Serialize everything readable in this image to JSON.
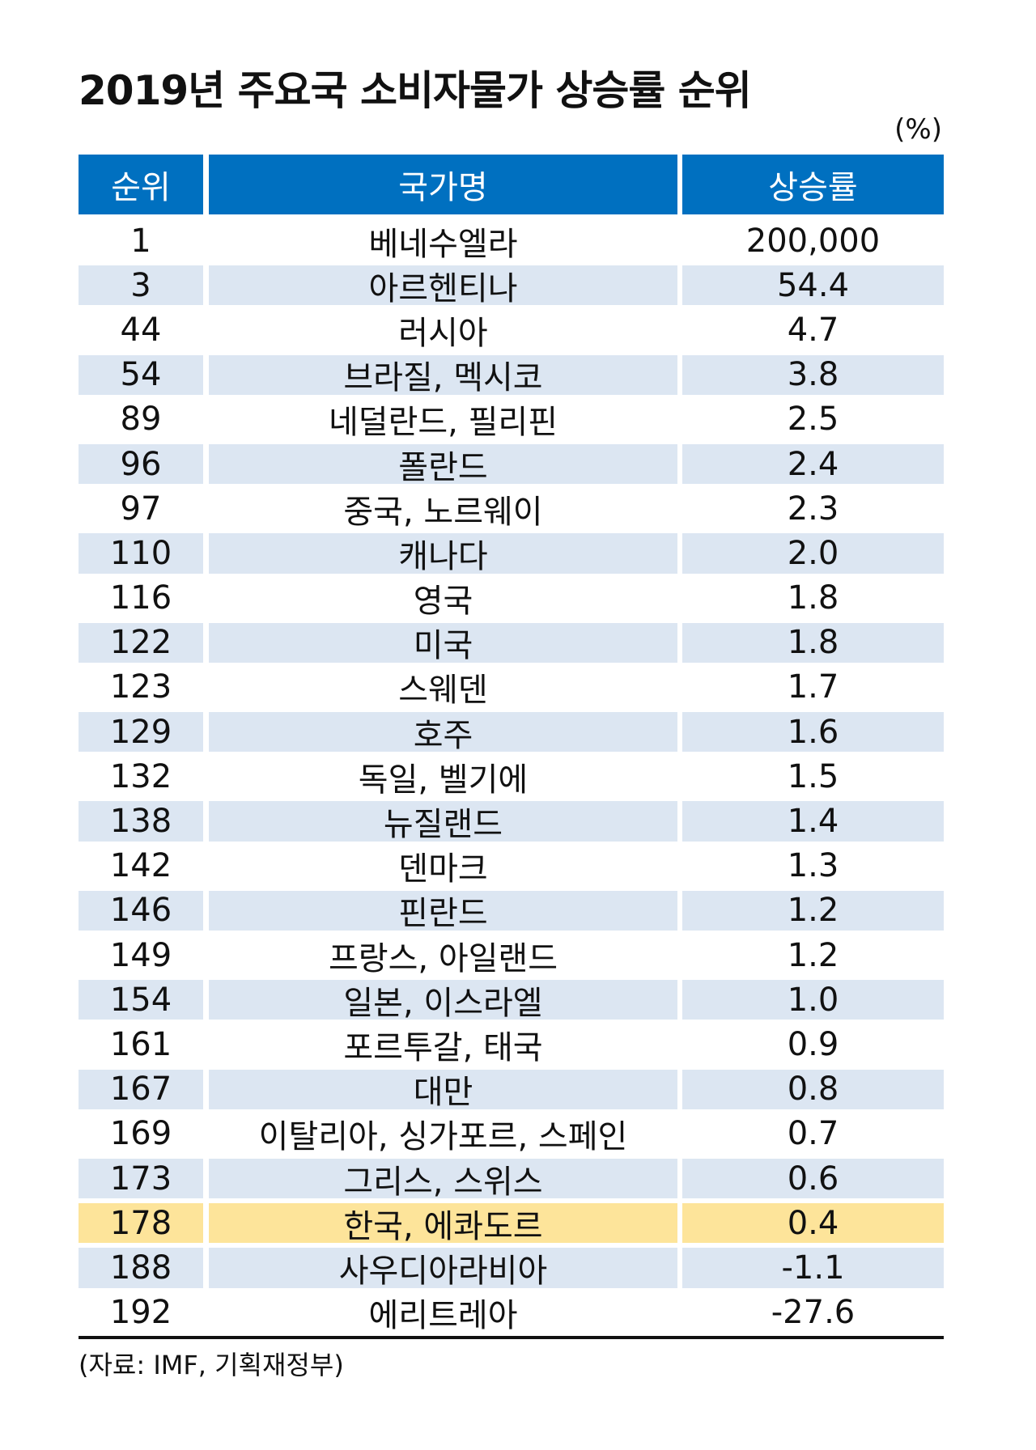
{
  "title": "2019년 주요국 소비자물가 상승률 순위",
  "unit": "(%)",
  "colors": {
    "header": "#0070c0",
    "shade": "#dce6f2",
    "highlight": "#fde49a"
  },
  "headers": [
    "순위",
    "국가명",
    "상승률"
  ],
  "rows": [
    {
      "rank": "1",
      "country": "베네수엘라",
      "rate": "200,000"
    },
    {
      "rank": "3",
      "country": "아르헨티나",
      "rate": "54.4"
    },
    {
      "rank": "44",
      "country": "러시아",
      "rate": "4.7"
    },
    {
      "rank": "54",
      "country": "브라질, 멕시코",
      "rate": "3.8"
    },
    {
      "rank": "89",
      "country": "네덜란드, 필리핀",
      "rate": "2.5"
    },
    {
      "rank": "96",
      "country": "폴란드",
      "rate": "2.4"
    },
    {
      "rank": "97",
      "country": "중국, 노르웨이",
      "rate": "2.3"
    },
    {
      "rank": "110",
      "country": "캐나다",
      "rate": "2.0"
    },
    {
      "rank": "116",
      "country": "영국",
      "rate": "1.8"
    },
    {
      "rank": "122",
      "country": "미국",
      "rate": "1.8"
    },
    {
      "rank": "123",
      "country": "스웨덴",
      "rate": "1.7"
    },
    {
      "rank": "129",
      "country": "호주",
      "rate": "1.6"
    },
    {
      "rank": "132",
      "country": "독일, 벨기에",
      "rate": "1.5"
    },
    {
      "rank": "138",
      "country": "뉴질랜드",
      "rate": "1.4"
    },
    {
      "rank": "142",
      "country": "덴마크",
      "rate": "1.3"
    },
    {
      "rank": "146",
      "country": "핀란드",
      "rate": "1.2"
    },
    {
      "rank": "149",
      "country": "프랑스, 아일랜드",
      "rate": "1.2"
    },
    {
      "rank": "154",
      "country": "일본, 이스라엘",
      "rate": "1.0"
    },
    {
      "rank": "161",
      "country": "포르투갈, 태국",
      "rate": "0.9"
    },
    {
      "rank": "167",
      "country": "대만",
      "rate": "0.8"
    },
    {
      "rank": "169",
      "country": "이탈리아, 싱가포르, 스페인",
      "rate": "0.7"
    },
    {
      "rank": "173",
      "country": "그리스, 스위스",
      "rate": "0.6"
    },
    {
      "rank": "178",
      "country": "한국, 에콰도르",
      "rate": "0.4",
      "highlight": true
    },
    {
      "rank": "188",
      "country": "사우디아라비아",
      "rate": "-1.1"
    },
    {
      "rank": "192",
      "country": "에리트레아",
      "rate": "-27.6"
    }
  ],
  "source": "(자료: IMF, 기획재정부)"
}
